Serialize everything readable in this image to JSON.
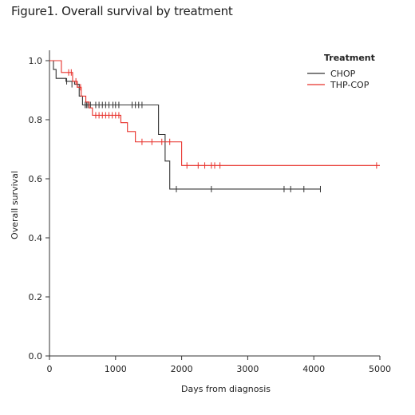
{
  "figure_title": "Figure1. Overall survival by treatment",
  "chart_data": {
    "type": "line",
    "subtype": "kaplan-meier",
    "xlabel": "Days from diagnosis",
    "ylabel": "Overall survival",
    "xlim": [
      0,
      5000
    ],
    "ylim": [
      0,
      1.0
    ],
    "x_ticks": [
      0,
      1000,
      2000,
      3000,
      4000,
      5000
    ],
    "y_ticks": [
      0.0,
      0.2,
      0.4,
      0.6,
      0.8,
      1.0
    ],
    "y_tick_labels": [
      "0.0",
      "0.2",
      "0.4",
      "0.6",
      "0.8",
      "1.0"
    ],
    "grid": false,
    "legend": {
      "title": "Treatment",
      "position": "top-right"
    },
    "series": [
      {
        "name": "CHOP",
        "color": "#333333",
        "steps": [
          [
            0,
            1.0
          ],
          [
            60,
            0.97
          ],
          [
            100,
            0.94
          ],
          [
            250,
            0.93
          ],
          [
            380,
            0.92
          ],
          [
            450,
            0.88
          ],
          [
            500,
            0.85
          ],
          [
            1600,
            0.85
          ],
          [
            1650,
            0.75
          ],
          [
            1750,
            0.66
          ],
          [
            1820,
            0.565
          ],
          [
            4100,
            0.565
          ]
        ],
        "censored": [
          [
            260,
            0.93
          ],
          [
            340,
            0.92
          ],
          [
            420,
            0.92
          ],
          [
            540,
            0.85
          ],
          [
            560,
            0.85
          ],
          [
            580,
            0.85
          ],
          [
            620,
            0.85
          ],
          [
            700,
            0.85
          ],
          [
            750,
            0.85
          ],
          [
            800,
            0.85
          ],
          [
            850,
            0.85
          ],
          [
            900,
            0.85
          ],
          [
            960,
            0.85
          ],
          [
            1000,
            0.85
          ],
          [
            1050,
            0.85
          ],
          [
            1250,
            0.85
          ],
          [
            1300,
            0.85
          ],
          [
            1350,
            0.85
          ],
          [
            1400,
            0.85
          ],
          [
            1920,
            0.565
          ],
          [
            2450,
            0.565
          ],
          [
            3550,
            0.565
          ],
          [
            3650,
            0.565
          ],
          [
            3850,
            0.565
          ],
          [
            4100,
            0.565
          ]
        ]
      },
      {
        "name": "THP-COP",
        "color": "#e8302a",
        "steps": [
          [
            0,
            1.0
          ],
          [
            180,
            0.96
          ],
          [
            350,
            0.93
          ],
          [
            420,
            0.91
          ],
          [
            480,
            0.88
          ],
          [
            550,
            0.86
          ],
          [
            600,
            0.84
          ],
          [
            650,
            0.815
          ],
          [
            1080,
            0.79
          ],
          [
            1180,
            0.76
          ],
          [
            1300,
            0.725
          ],
          [
            2000,
            0.645
          ],
          [
            5000,
            0.645
          ]
        ],
        "censored": [
          [
            290,
            0.96
          ],
          [
            330,
            0.96
          ],
          [
            400,
            0.93
          ],
          [
            470,
            0.91
          ],
          [
            700,
            0.815
          ],
          [
            750,
            0.815
          ],
          [
            800,
            0.815
          ],
          [
            850,
            0.815
          ],
          [
            900,
            0.815
          ],
          [
            950,
            0.815
          ],
          [
            1000,
            0.815
          ],
          [
            1050,
            0.815
          ],
          [
            1400,
            0.725
          ],
          [
            1550,
            0.725
          ],
          [
            1700,
            0.725
          ],
          [
            1820,
            0.725
          ],
          [
            2080,
            0.645
          ],
          [
            2250,
            0.645
          ],
          [
            2350,
            0.645
          ],
          [
            2450,
            0.645
          ],
          [
            2500,
            0.645
          ],
          [
            2580,
            0.645
          ],
          [
            4950,
            0.645
          ]
        ]
      }
    ]
  }
}
